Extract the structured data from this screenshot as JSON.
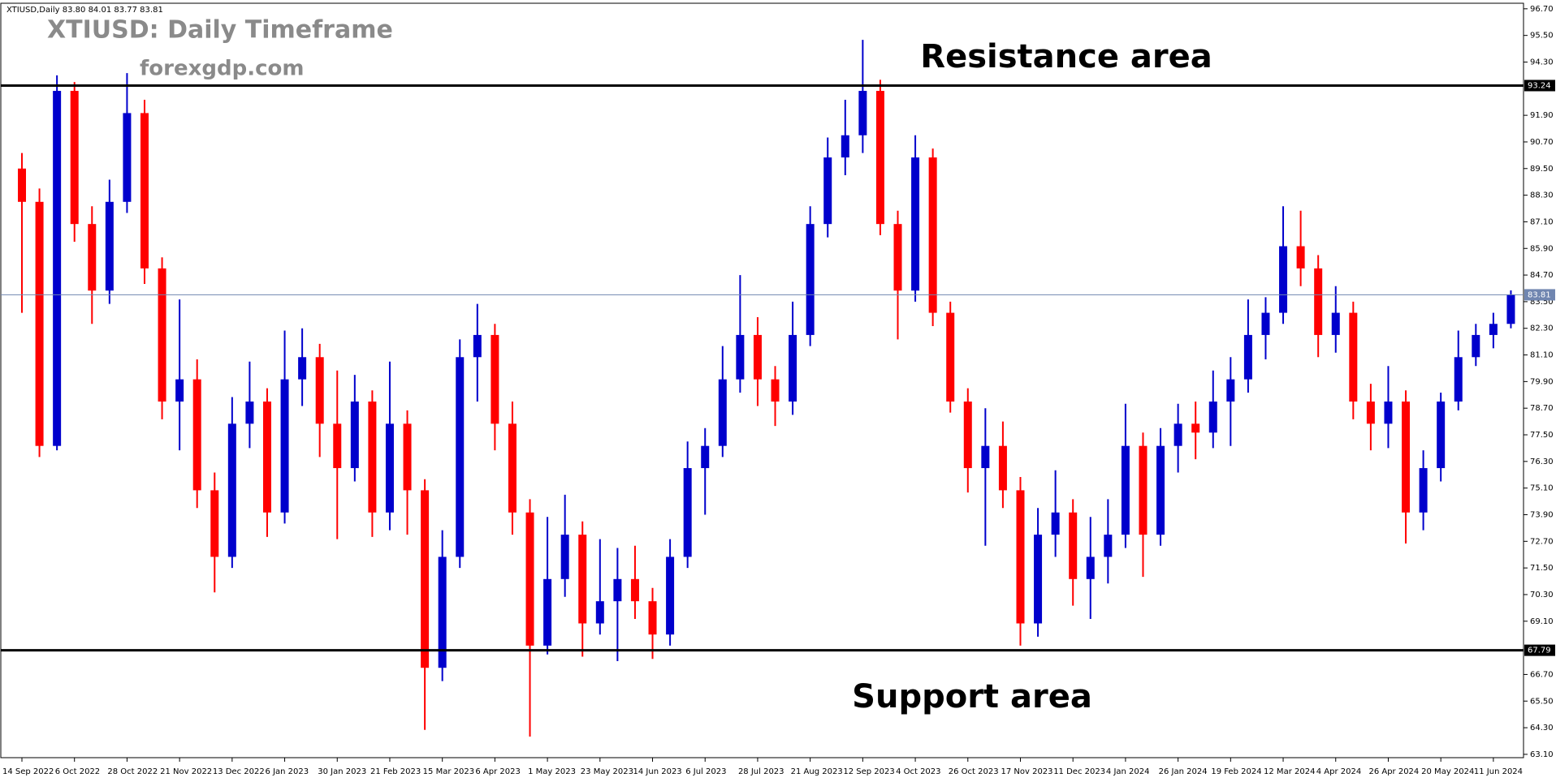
{
  "chart_data": {
    "type": "candlestick",
    "header": "XTIUSD,Daily  83.80 84.01 83.77 83.81",
    "title": "XTIUSD: Daily Timeframe",
    "subtitle": "forexgdp.com",
    "annotations": [
      "Resistance area",
      "Support area"
    ],
    "up_color": "#0000cc",
    "down_color": "#ff0000",
    "categories": [
      "14 Sep 2022",
      null,
      null,
      "6 Oct 2022",
      null,
      null,
      "28 Oct 2022",
      null,
      null,
      "21 Nov 2022",
      null,
      null,
      "13 Dec 2022",
      null,
      null,
      "6 Jan 2023",
      null,
      null,
      "30 Jan 2023",
      null,
      null,
      "21 Feb 2023",
      null,
      null,
      "15 Mar 2023",
      null,
      null,
      "6 Apr 2023",
      null,
      null,
      "1 May 2023",
      null,
      null,
      "23 May 2023",
      null,
      null,
      "14 Jun 2023",
      null,
      null,
      "6 Jul 2023",
      null,
      null,
      "28 Jul 2023",
      null,
      null,
      "21 Aug 2023",
      null,
      null,
      "12 Sep 2023",
      null,
      null,
      "4 Oct 2023",
      null,
      null,
      "26 Oct 2023",
      null,
      null,
      "17 Nov 2023",
      null,
      null,
      "11 Dec 2023",
      null,
      null,
      "4 Jan 2024",
      null,
      null,
      "26 Jan 2024",
      null,
      null,
      "19 Feb 2024",
      null,
      null,
      "12 Mar 2024",
      null,
      null,
      "4 Apr 2024",
      null,
      null,
      "26 Apr 2024",
      null,
      null,
      "20 May 2024",
      null,
      null,
      "11 Jun 2024",
      null
    ],
    "candles": [
      [
        89.5,
        90.2,
        83.0,
        88.0
      ],
      [
        88.0,
        88.6,
        76.5,
        77.0
      ],
      [
        77.0,
        93.7,
        76.8,
        93.0
      ],
      [
        93.0,
        93.4,
        86.2,
        87.0
      ],
      [
        87.0,
        87.8,
        82.5,
        84.0
      ],
      [
        84.0,
        89.0,
        83.4,
        88.0
      ],
      [
        88.0,
        93.8,
        87.5,
        92.0
      ],
      [
        92.0,
        92.6,
        84.3,
        85.0
      ],
      [
        85.0,
        85.5,
        78.2,
        79.0
      ],
      [
        79.0,
        83.6,
        76.8,
        80.0
      ],
      [
        80.0,
        80.9,
        74.2,
        75.0
      ],
      [
        75.0,
        75.8,
        70.4,
        72.0
      ],
      [
        72.0,
        79.2,
        71.5,
        78.0
      ],
      [
        78.0,
        80.8,
        76.9,
        79.0
      ],
      [
        79.0,
        79.6,
        72.9,
        74.0
      ],
      [
        74.0,
        82.2,
        73.5,
        80.0
      ],
      [
        80.0,
        82.3,
        78.8,
        81.0
      ],
      [
        81.0,
        81.6,
        76.5,
        78.0
      ],
      [
        78.0,
        80.4,
        72.8,
        76.0
      ],
      [
        76.0,
        80.2,
        75.4,
        79.0
      ],
      [
        79.0,
        79.5,
        72.9,
        74.0
      ],
      [
        74.0,
        80.8,
        73.2,
        78.0
      ],
      [
        78.0,
        78.6,
        73.0,
        75.0
      ],
      [
        75.0,
        75.5,
        64.2,
        67.0
      ],
      [
        67.0,
        73.2,
        66.4,
        72.0
      ],
      [
        72.0,
        81.8,
        71.5,
        81.0
      ],
      [
        81.0,
        83.4,
        79.0,
        82.0
      ],
      [
        82.0,
        82.5,
        76.8,
        78.0
      ],
      [
        78.0,
        79.0,
        73.0,
        74.0
      ],
      [
        74.0,
        74.6,
        63.9,
        68.0
      ],
      [
        68.0,
        73.8,
        67.6,
        71.0
      ],
      [
        71.0,
        74.8,
        70.2,
        73.0
      ],
      [
        73.0,
        73.6,
        67.5,
        69.0
      ],
      [
        69.0,
        72.8,
        68.5,
        70.0
      ],
      [
        70.0,
        72.4,
        67.3,
        71.0
      ],
      [
        71.0,
        72.5,
        69.2,
        70.0
      ],
      [
        70.0,
        70.6,
        67.4,
        68.5
      ],
      [
        68.5,
        72.8,
        68.0,
        72.0
      ],
      [
        72.0,
        77.2,
        71.5,
        76.0
      ],
      [
        76.0,
        77.8,
        73.9,
        77.0
      ],
      [
        77.0,
        81.5,
        76.5,
        80.0
      ],
      [
        80.0,
        84.7,
        79.4,
        82.0
      ],
      [
        82.0,
        82.8,
        78.8,
        80.0
      ],
      [
        80.0,
        80.6,
        77.9,
        79.0
      ],
      [
        79.0,
        83.5,
        78.4,
        82.0
      ],
      [
        82.0,
        87.8,
        81.5,
        87.0
      ],
      [
        87.0,
        90.9,
        86.4,
        90.0
      ],
      [
        90.0,
        92.6,
        89.2,
        91.0
      ],
      [
        91.0,
        95.3,
        90.2,
        93.0
      ],
      [
        93.0,
        93.5,
        86.5,
        87.0
      ],
      [
        87.0,
        87.6,
        81.8,
        84.0
      ],
      [
        84.0,
        91.0,
        83.5,
        90.0
      ],
      [
        90.0,
        90.4,
        82.4,
        83.0
      ],
      [
        83.0,
        83.5,
        78.5,
        79.0
      ],
      [
        79.0,
        79.6,
        74.9,
        76.0
      ],
      [
        76.0,
        78.7,
        72.5,
        77.0
      ],
      [
        77.0,
        78.1,
        74.2,
        75.0
      ],
      [
        75.0,
        75.6,
        68.0,
        69.0
      ],
      [
        69.0,
        74.2,
        68.4,
        73.0
      ],
      [
        73.0,
        75.9,
        72.0,
        74.0
      ],
      [
        74.0,
        74.6,
        69.8,
        71.0
      ],
      [
        71.0,
        73.8,
        69.2,
        72.0
      ],
      [
        72.0,
        74.6,
        70.8,
        73.0
      ],
      [
        73.0,
        78.9,
        72.4,
        77.0
      ],
      [
        77.0,
        77.6,
        71.1,
        73.0
      ],
      [
        73.0,
        77.8,
        72.5,
        77.0
      ],
      [
        77.0,
        78.9,
        75.8,
        78.0
      ],
      [
        78.0,
        79.0,
        76.4,
        77.6
      ],
      [
        77.6,
        80.4,
        76.9,
        79.0
      ],
      [
        79.0,
        81.0,
        77.0,
        80.0
      ],
      [
        80.0,
        83.6,
        79.4,
        82.0
      ],
      [
        82.0,
        83.7,
        80.9,
        83.0
      ],
      [
        83.0,
        87.8,
        82.5,
        86.0
      ],
      [
        86.0,
        87.6,
        84.2,
        85.0
      ],
      [
        85.0,
        85.6,
        81.0,
        82.0
      ],
      [
        82.0,
        84.2,
        81.2,
        83.0
      ],
      [
        83.0,
        83.5,
        78.2,
        79.0
      ],
      [
        79.0,
        79.8,
        76.8,
        78.0
      ],
      [
        78.0,
        80.6,
        76.9,
        79.0
      ],
      [
        79.0,
        79.5,
        72.6,
        74.0
      ],
      [
        74.0,
        76.8,
        73.2,
        76.0
      ],
      [
        76.0,
        79.4,
        75.4,
        79.0
      ],
      [
        79.0,
        82.2,
        78.6,
        81.0
      ],
      [
        81.0,
        82.5,
        80.6,
        82.0
      ],
      [
        82.0,
        83.0,
        81.4,
        82.5
      ],
      [
        82.5,
        84.01,
        82.3,
        83.81
      ]
    ],
    "levels": [
      {
        "value": 93.24,
        "color": "#000000"
      },
      {
        "value": 67.79,
        "color": "#000000"
      },
      {
        "value": 83.81,
        "color": "#7086b0"
      }
    ],
    "ylim": [
      62.95,
      96.95
    ],
    "yticks": [
      {
        "value": 96.7,
        "label": "96.70"
      },
      {
        "value": 95.5,
        "label": "95.50"
      },
      {
        "value": 94.3,
        "label": "94.30"
      },
      {
        "value": 91.9,
        "label": "91.90"
      },
      {
        "value": 90.7,
        "label": "90.70"
      },
      {
        "value": 89.5,
        "label": "89.50"
      },
      {
        "value": 88.3,
        "label": "88.30"
      },
      {
        "value": 87.1,
        "label": "87.10"
      },
      {
        "value": 85.9,
        "label": "85.90"
      },
      {
        "value": 84.7,
        "label": "84.70"
      },
      {
        "value": 83.5,
        "label": "83.50"
      },
      {
        "value": 82.3,
        "label": "82.30"
      },
      {
        "value": 81.1,
        "label": "81.10"
      },
      {
        "value": 79.9,
        "label": "79.90"
      },
      {
        "value": 78.7,
        "label": "78.70"
      },
      {
        "value": 77.5,
        "label": "77.50"
      },
      {
        "value": 76.3,
        "label": "76.30"
      },
      {
        "value": 75.1,
        "label": "75.10"
      },
      {
        "value": 73.9,
        "label": "73.90"
      },
      {
        "value": 72.7,
        "label": "72.70"
      },
      {
        "value": 71.5,
        "label": "71.50"
      },
      {
        "value": 70.3,
        "label": "70.30"
      },
      {
        "value": 69.1,
        "label": "69.10"
      },
      {
        "value": 66.7,
        "label": "66.70"
      },
      {
        "value": 65.5,
        "label": "65.50"
      },
      {
        "value": 64.3,
        "label": "64.30"
      },
      {
        "value": 63.1,
        "label": "63.10"
      }
    ]
  }
}
